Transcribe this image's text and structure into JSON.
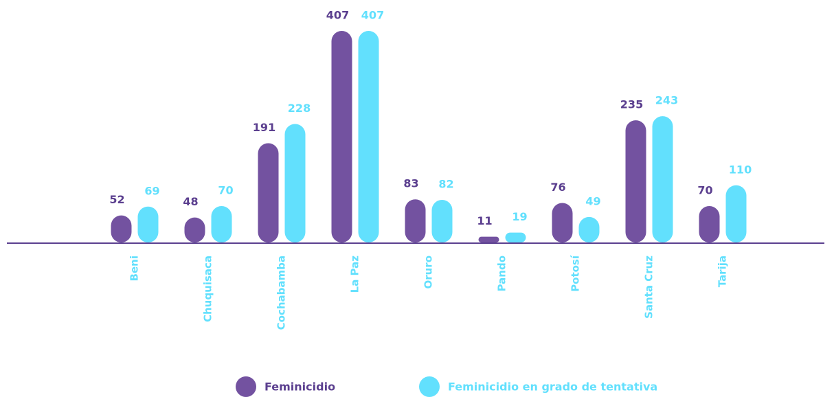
{
  "chart_data": {
    "type": "bar",
    "categories": [
      "Beni",
      "Chuquisaca",
      "Cochabamba",
      "La Paz",
      "Oruro",
      "Pando",
      "Potosí",
      "Santa Cruz",
      "Tarija"
    ],
    "series": [
      {
        "name": "Feminicidio",
        "color": "#7352a0",
        "values": [
          52,
          48,
          191,
          407,
          83,
          11,
          76,
          235,
          70
        ]
      },
      {
        "name": "Feminicidio en grado de tentativa",
        "color": "#62e0fd",
        "values": [
          69,
          70,
          228,
          407,
          82,
          19,
          49,
          243,
          110
        ]
      }
    ]
  }
}
